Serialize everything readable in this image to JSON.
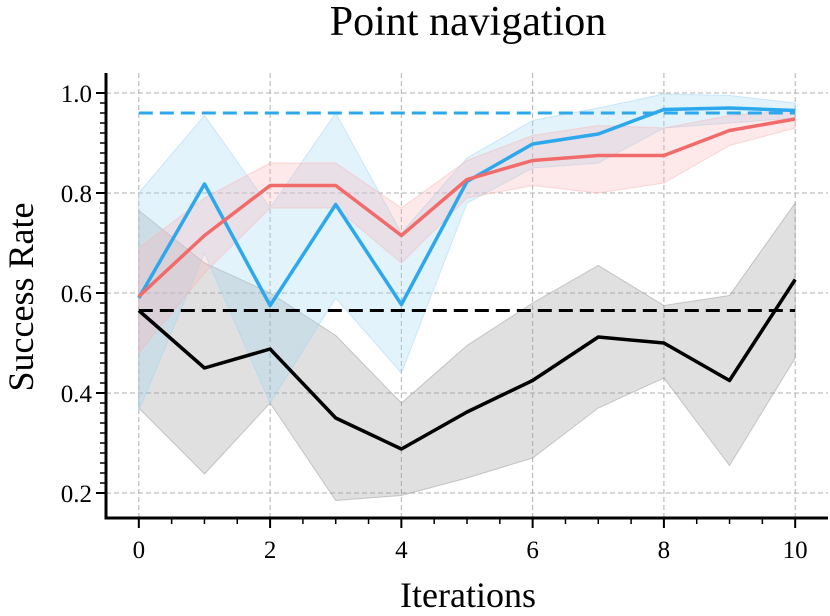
{
  "chart_data": {
    "type": "line",
    "title": "Point navigation",
    "xlabel": "Iterations",
    "ylabel": "Success Rate",
    "xlim": [
      -0.5,
      10.5
    ],
    "ylim": [
      0.15,
      1.04
    ],
    "xticks": [
      0,
      2,
      4,
      6,
      8,
      10
    ],
    "yticks": [
      0.2,
      0.4,
      0.6,
      0.8,
      1.0
    ],
    "xtick_labels": [
      "0",
      "2",
      "4",
      "6",
      "8",
      "10"
    ],
    "ytick_labels": [
      "0.2",
      "0.4",
      "0.6",
      "0.8",
      "1.0"
    ],
    "grid": true,
    "legend": "none",
    "x": [
      0,
      1,
      2,
      3,
      4,
      5,
      6,
      7,
      8,
      9,
      10
    ],
    "series": [
      {
        "color": "#000000",
        "values": [
          0.565,
          0.45,
          0.488,
          0.35,
          0.288,
          0.362,
          0.425,
          0.512,
          0.5,
          0.425,
          0.627
        ],
        "lower": [
          0.37,
          0.238,
          0.38,
          0.185,
          0.195,
          0.23,
          0.27,
          0.37,
          0.43,
          0.255,
          0.47
        ],
        "upper": [
          0.765,
          0.66,
          0.6,
          0.515,
          0.38,
          0.495,
          0.58,
          0.655,
          0.575,
          0.595,
          0.78
        ],
        "band_color": "#999999"
      },
      {
        "color": "#2EA8EC",
        "values": [
          0.59,
          0.818,
          0.575,
          0.777,
          0.577,
          0.823,
          0.898,
          0.918,
          0.967,
          0.97,
          0.965
        ],
        "lower": [
          0.365,
          0.68,
          0.38,
          0.59,
          0.44,
          0.78,
          0.85,
          0.86,
          0.93,
          0.94,
          0.95
        ],
        "upper": [
          0.8,
          0.955,
          0.77,
          0.96,
          0.72,
          0.87,
          0.945,
          0.97,
          0.998,
          0.995,
          0.98
        ],
        "band_color": "#9FD6F5"
      },
      {
        "color": "#F26B6B",
        "values": [
          0.593,
          0.715,
          0.815,
          0.815,
          0.715,
          0.827,
          0.865,
          0.875,
          0.875,
          0.925,
          0.948
        ],
        "lower": [
          0.48,
          0.64,
          0.77,
          0.77,
          0.66,
          0.79,
          0.815,
          0.8,
          0.82,
          0.895,
          0.93
        ],
        "upper": [
          0.69,
          0.79,
          0.86,
          0.86,
          0.77,
          0.865,
          0.915,
          0.935,
          0.93,
          0.955,
          0.965
        ],
        "band_color": "#F9B5B5"
      }
    ],
    "hlines": [
      {
        "y": 0.565,
        "color": "#000000",
        "style": "dashed"
      },
      {
        "y": 0.96,
        "color": "#2EA8EC",
        "style": "dashed"
      }
    ]
  }
}
